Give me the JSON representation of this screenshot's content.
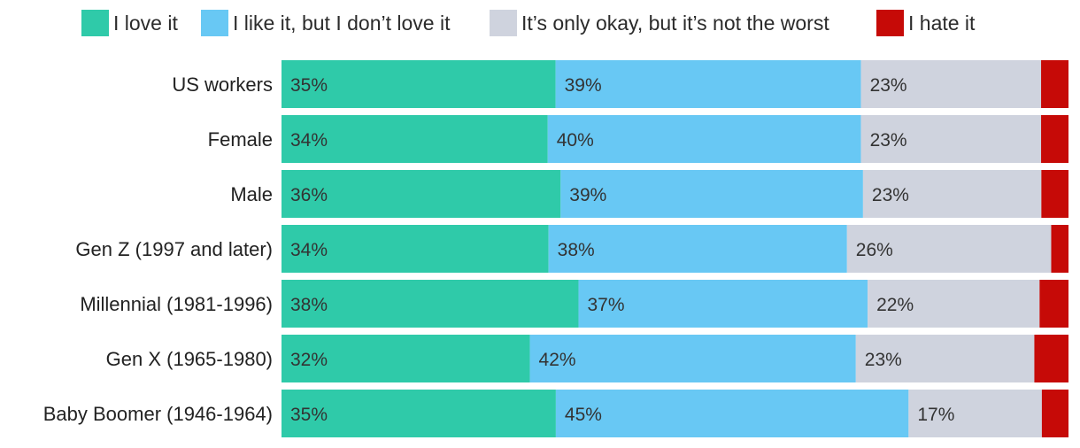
{
  "chart_data": {
    "type": "bar",
    "orientation": "horizontal",
    "stacked": true,
    "title": "",
    "xlabel": "",
    "ylabel": "",
    "xlim": [
      0,
      100
    ],
    "grid": false,
    "legend_position": "top",
    "categories": [
      "US workers",
      "Female",
      "Male",
      "Gen Z (1997 and later)",
      "Millennial (1981-1996)",
      "Gen X (1965-1980)",
      "Baby Boomer (1946-1964)"
    ],
    "series": [
      {
        "name": "I love it",
        "color": "#2fcaa9",
        "values": [
          35,
          34,
          36,
          34,
          38,
          32,
          35
        ],
        "labels": [
          "35%",
          "34%",
          "36%",
          "34%",
          "38%",
          "32%",
          "35%"
        ]
      },
      {
        "name": "I like it, but I don’t love it",
        "color": "#68c8f4",
        "values": [
          39,
          40,
          39,
          38,
          37,
          42,
          45
        ],
        "labels": [
          "39%",
          "40%",
          "39%",
          "38%",
          "37%",
          "42%",
          "45%"
        ]
      },
      {
        "name": "It’s only okay, but it’s not the worst",
        "color": "#cfd3de",
        "values": [
          23,
          23,
          23,
          26,
          22,
          23,
          17
        ],
        "labels": [
          "23%",
          "23%",
          "23%",
          "26%",
          "22%",
          "23%",
          "17%"
        ]
      },
      {
        "name": "I hate it",
        "color": "#c60a07",
        "values": [
          3.5,
          3.5,
          3.5,
          2.2,
          3.7,
          4.4,
          3.4
        ],
        "labels": [
          "",
          "",
          "",
          "",
          "",
          "",
          ""
        ]
      }
    ]
  }
}
